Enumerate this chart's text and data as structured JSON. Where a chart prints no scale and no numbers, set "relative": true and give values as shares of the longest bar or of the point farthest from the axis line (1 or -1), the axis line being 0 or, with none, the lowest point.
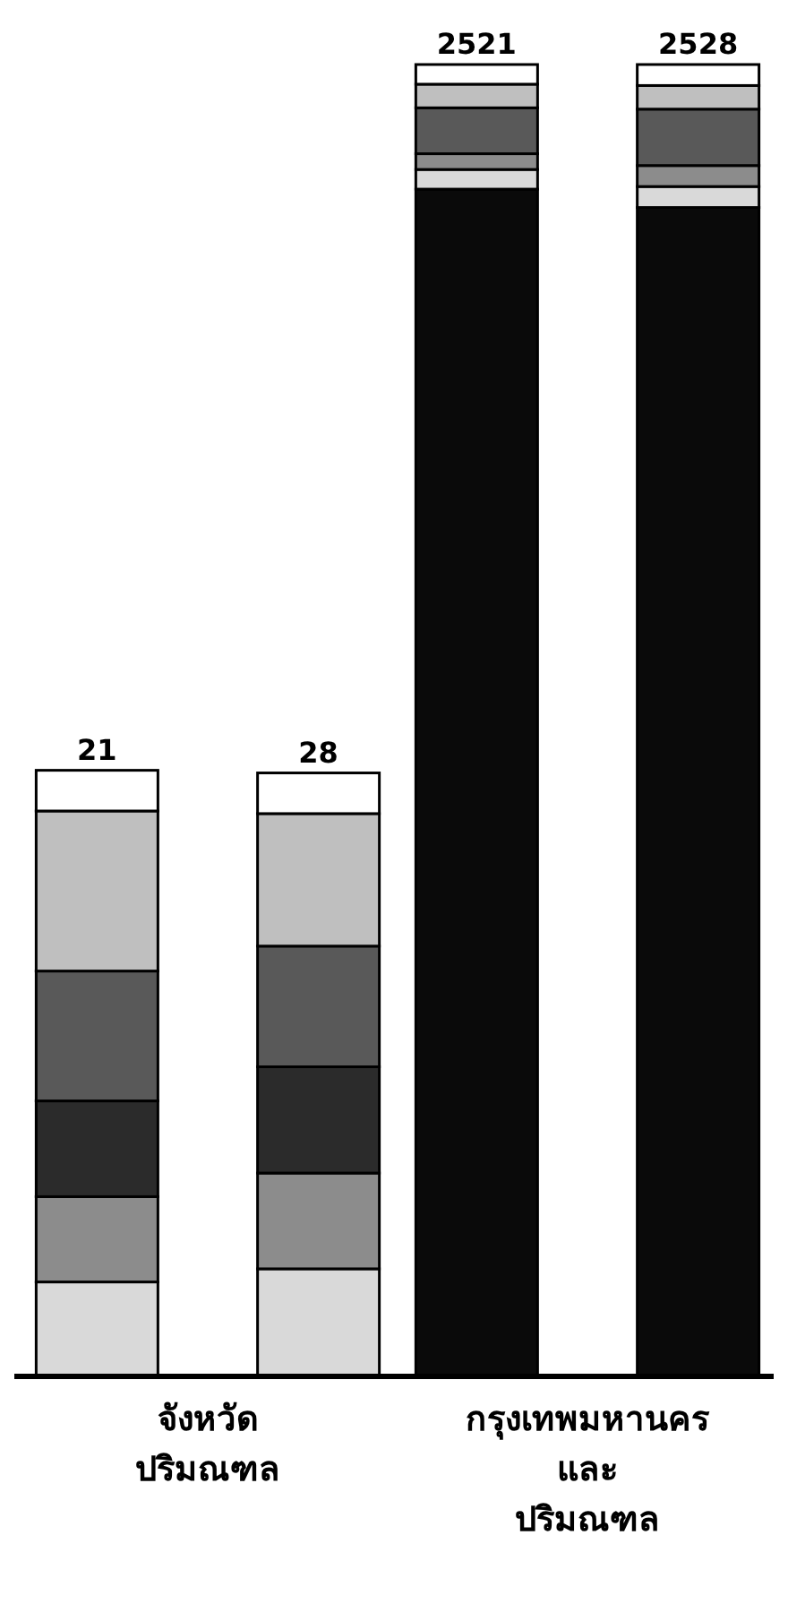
{
  "chart_data": {
    "type": "bar",
    "stacked": true,
    "relative": true,
    "categories": [
      "21",
      "28",
      "2521",
      "2528"
    ],
    "series": [
      {
        "color": "#0a0a0a",
        "values": [
          0,
          0,
          0.905,
          0.891
        ]
      },
      {
        "color": "#d9d9d9",
        "values": [
          0.072,
          0.082,
          0.015,
          0.016
        ]
      },
      {
        "color": "#8c8c8c",
        "values": [
          0.065,
          0.073,
          0.012,
          0.016
        ]
      },
      {
        "color": "#2b2b2b",
        "values": [
          0.073,
          0.081,
          0,
          0
        ]
      },
      {
        "color": "#595959",
        "values": [
          0.099,
          0.092,
          0.035,
          0.043
        ]
      },
      {
        "color": "#bfbfbf",
        "values": [
          0.122,
          0.101,
          0.018,
          0.018
        ]
      },
      {
        "color": "#ffffff",
        "values": [
          0.031,
          0.031,
          0.015,
          0.016
        ]
      }
    ],
    "annotations": [
      "จังหวัด\nปริมณฑล",
      "กรุงเทพมหานคร\nและ\nปริมณฑล"
    ]
  }
}
